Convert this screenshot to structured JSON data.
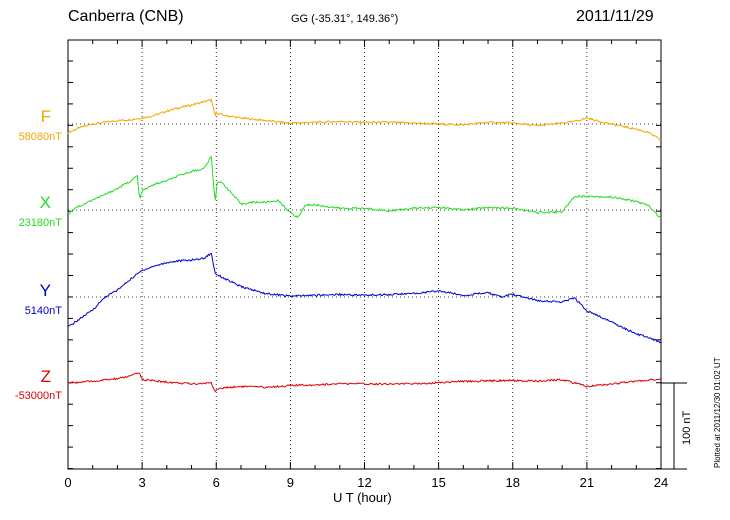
{
  "header": {
    "station": "Canberra (CNB)",
    "coords": "GG (-35.31°, 149.36°)",
    "date": "2011/11/29"
  },
  "footer": {
    "xlabel": "U T (hour)",
    "plotted": "Plotted at 2011/12/30 01:02 UT",
    "scale_label": "100 nT"
  },
  "chart_data": {
    "type": "line",
    "xlabel": "U T (hour)",
    "xlim": [
      0,
      24
    ],
    "xticks": [
      "0",
      "3",
      "6",
      "9",
      "12",
      "15",
      "18",
      "21",
      "24"
    ],
    "grid": true,
    "scale_bar_nT": 100,
    "series": [
      {
        "name": "F",
        "base_label": "58080nT",
        "color": "#f0a800",
        "baseline_nT": 58080,
        "x": [
          0,
          0.5,
          1,
          1.5,
          2,
          2.5,
          3,
          3.5,
          4,
          4.5,
          5,
          5.5,
          5.8,
          5.95,
          6,
          6.3,
          7,
          8,
          9,
          10,
          11,
          12,
          13,
          14,
          15,
          16,
          17,
          18,
          19,
          20,
          20.5,
          21,
          21.5,
          22,
          23,
          23.5,
          24
        ],
        "y": [
          -10,
          -4,
          0,
          2,
          4,
          5,
          7,
          10,
          15,
          19,
          22,
          26,
          28,
          10,
          13,
          10,
          7,
          4,
          1,
          2,
          3,
          2,
          2,
          1,
          0,
          -1,
          2,
          1,
          -2,
          1,
          3,
          7,
          3,
          0,
          -6,
          -10,
          -19
        ]
      },
      {
        "name": "X",
        "base_label": "23180nT",
        "color": "#22dd22",
        "baseline_nT": 23180,
        "x": [
          0,
          0.3,
          0.6,
          1,
          1.5,
          2,
          2.5,
          2.8,
          2.9,
          3,
          3.5,
          4,
          4.5,
          5,
          5.5,
          5.8,
          5.95,
          6.05,
          6.3,
          6.6,
          7,
          7.5,
          8,
          8.5,
          9,
          9.3,
          9.6,
          10,
          11,
          12,
          13,
          14,
          15,
          16,
          17,
          18,
          19,
          20,
          20.5,
          21,
          22,
          23,
          23.5,
          24
        ],
        "y": [
          -5,
          3,
          6,
          12,
          18,
          25,
          33,
          40,
          12,
          22,
          30,
          34,
          40,
          45,
          48,
          62,
          10,
          34,
          30,
          20,
          7,
          9,
          9,
          11,
          -3,
          -9,
          6,
          6,
          2,
          2,
          -1,
          2,
          3,
          0,
          3,
          2,
          -3,
          -2,
          16,
          16,
          15,
          10,
          5,
          -10
        ]
      },
      {
        "name": "Y",
        "base_label": "5140nT",
        "color": "#0000cc",
        "baseline_nT": 5140,
        "x": [
          0,
          0.5,
          1,
          1.5,
          2,
          2.5,
          3,
          3.5,
          4,
          4.5,
          5,
          5.5,
          5.8,
          5.95,
          6.05,
          6.3,
          7,
          8,
          9,
          10,
          11,
          12,
          13,
          14,
          15,
          16,
          17,
          17.5,
          18,
          19,
          20,
          20.5,
          21,
          22,
          23,
          23.5,
          24
        ],
        "y": [
          -35,
          -25,
          -15,
          0,
          8,
          20,
          31,
          36,
          40,
          42,
          43,
          45,
          51,
          28,
          26,
          22,
          12,
          4,
          1,
          2,
          3,
          2,
          3,
          4,
          7,
          2,
          5,
          0,
          3,
          -4,
          -6,
          -1,
          -16,
          -29,
          -43,
          -47,
          -53
        ]
      },
      {
        "name": "Z",
        "base_label": "-53000nT",
        "color": "#dd0000",
        "baseline_nT": -53000,
        "x": [
          0,
          1,
          2,
          2.5,
          2.9,
          3,
          4,
          5,
          5.8,
          5.95,
          6.05,
          6.5,
          7,
          8,
          9,
          10,
          11,
          12,
          14,
          16,
          18,
          19,
          20,
          20.5,
          21,
          22,
          23,
          24
        ],
        "y": [
          0,
          2,
          5,
          8,
          12,
          4,
          1,
          -1,
          0,
          -10,
          -7,
          -5,
          -4,
          -5,
          -3,
          -2,
          -1,
          -1,
          -1,
          2,
          3,
          2,
          4,
          0,
          -4,
          -1,
          2,
          5
        ]
      }
    ]
  }
}
